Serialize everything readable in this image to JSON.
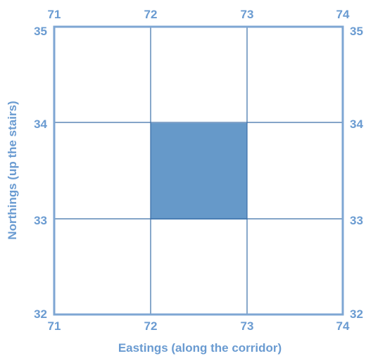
{
  "grid": {
    "eastings": [
      "71",
      "72",
      "73",
      "74"
    ],
    "northings": [
      "35",
      "34",
      "33",
      "32"
    ],
    "highlighted_square": {
      "easting": 72,
      "northing": 33
    }
  },
  "axes": {
    "xlabel": "Eastings (along the corridor)",
    "ylabel": "Northings (up the stairs)"
  },
  "colors": {
    "line": "#7ea6d3",
    "grid_line": "#3a6ea8",
    "fill": "#6699c9",
    "text": "#6a9bd1"
  }
}
